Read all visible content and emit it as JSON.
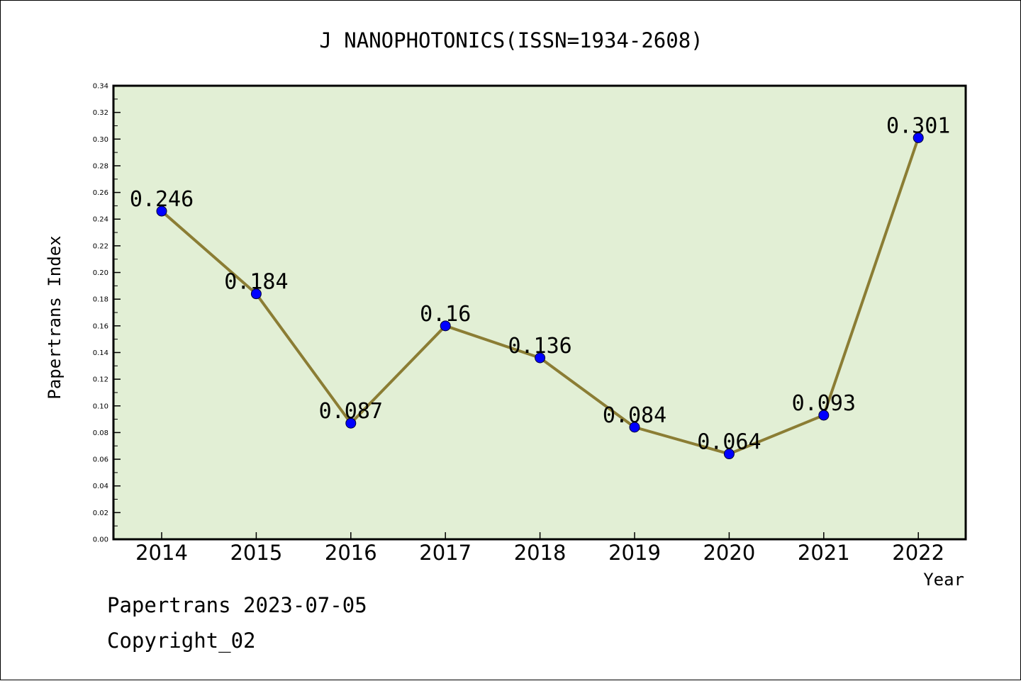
{
  "chart_data": {
    "type": "line",
    "title": "J NANOPHOTONICS(ISSN=1934-2608)",
    "xlabel": "Year",
    "ylabel": "Papertrans Index",
    "categories": [
      "2014",
      "2015",
      "2016",
      "2017",
      "2018",
      "2019",
      "2020",
      "2021",
      "2022"
    ],
    "series": [
      {
        "values": [
          0.246,
          0.184,
          0.087,
          0.16,
          0.136,
          0.084,
          0.064,
          0.093,
          0.301
        ],
        "labels": [
          "0.246",
          "0.184",
          "0.087",
          "0.16",
          "0.136",
          "0.084",
          "0.064",
          "0.093",
          "0.301"
        ]
      }
    ],
    "ylim": [
      0,
      0.34
    ],
    "yticks": [
      "0.00",
      "0.02",
      "0.04",
      "0.06",
      "0.08",
      "0.10",
      "0.12",
      "0.14",
      "0.16",
      "0.18",
      "0.20",
      "0.22",
      "0.24",
      "0.26",
      "0.28",
      "0.30",
      "0.32",
      "0.34"
    ],
    "grid": false,
    "legend": "none",
    "colors": {
      "plot_background": "#e2efd5",
      "line": "#8b7d34",
      "marker": "#0000ff",
      "axes": "#000000"
    }
  },
  "footer": {
    "line1": "Papertrans 2023-07-05",
    "line2": "Copyright_02"
  }
}
